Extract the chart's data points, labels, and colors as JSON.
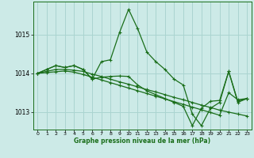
{
  "bg_color": "#cceae7",
  "grid_color": "#aad4d0",
  "line_color": "#1a6e1a",
  "series": [
    {
      "x": [
        0,
        1,
        2,
        3,
        4,
        5,
        6,
        7,
        8,
        9,
        10,
        11,
        12,
        13,
        14,
        15,
        16,
        17,
        18,
        19,
        20,
        21,
        22,
        23
      ],
      "y": [
        1014.0,
        1014.1,
        1014.2,
        1014.15,
        1014.2,
        1014.1,
        1013.85,
        1014.3,
        1014.35,
        1015.05,
        1015.65,
        1015.15,
        1014.55,
        1014.3,
        1014.1,
        1013.85,
        1013.7,
        1012.95,
        1012.65,
        1013.1,
        1013.25,
        1014.05,
        1013.25,
        1013.35
      ]
    },
    {
      "x": [
        0,
        1,
        2,
        3,
        4,
        5,
        6,
        7,
        8,
        9,
        10,
        11,
        12,
        13,
        14,
        15,
        16,
        17,
        18,
        19,
        20,
        21,
        22,
        23
      ],
      "y": [
        1014.0,
        1014.05,
        1014.1,
        1014.1,
        1014.08,
        1014.05,
        1013.98,
        1013.92,
        1013.85,
        1013.78,
        1013.72,
        1013.65,
        1013.58,
        1013.52,
        1013.45,
        1013.38,
        1013.32,
        1013.25,
        1013.18,
        1013.12,
        1013.05,
        1013.0,
        1012.95,
        1012.9
      ]
    },
    {
      "x": [
        0,
        1,
        2,
        3,
        4,
        5,
        6,
        7,
        8,
        9,
        10,
        11,
        12,
        13,
        14,
        15,
        16,
        17,
        18,
        19,
        20,
        21,
        22,
        23
      ],
      "y": [
        1014.0,
        1014.02,
        1014.04,
        1014.06,
        1014.03,
        1013.97,
        1013.9,
        1013.83,
        1013.76,
        1013.69,
        1013.62,
        1013.55,
        1013.48,
        1013.41,
        1013.34,
        1013.27,
        1013.2,
        1013.13,
        1013.06,
        1012.99,
        1012.92,
        1013.5,
        1013.32,
        1013.35
      ]
    },
    {
      "x": [
        0,
        1,
        2,
        3,
        4,
        5,
        6,
        7,
        8,
        9,
        10,
        11,
        12,
        13,
        14,
        15,
        16,
        17,
        18,
        19,
        20,
        21,
        22,
        23
      ],
      "y": [
        1014.0,
        1014.1,
        1014.2,
        1014.15,
        1014.2,
        1014.1,
        1013.85,
        1013.9,
        1013.92,
        1013.93,
        1013.92,
        1013.7,
        1013.55,
        1013.45,
        1013.35,
        1013.25,
        1013.15,
        1012.65,
        1013.1,
        1013.28,
        1013.3,
        1014.05,
        1013.28,
        1013.35
      ]
    }
  ],
  "ylim": [
    1012.55,
    1015.85
  ],
  "yticks": [
    1013,
    1014,
    1015
  ],
  "xticks": [
    0,
    1,
    2,
    3,
    4,
    5,
    6,
    7,
    8,
    9,
    10,
    11,
    12,
    13,
    14,
    15,
    16,
    17,
    18,
    19,
    20,
    21,
    22,
    23
  ],
  "xlabel": "Graphe pression niveau de la mer (hPa)",
  "marker": "+"
}
